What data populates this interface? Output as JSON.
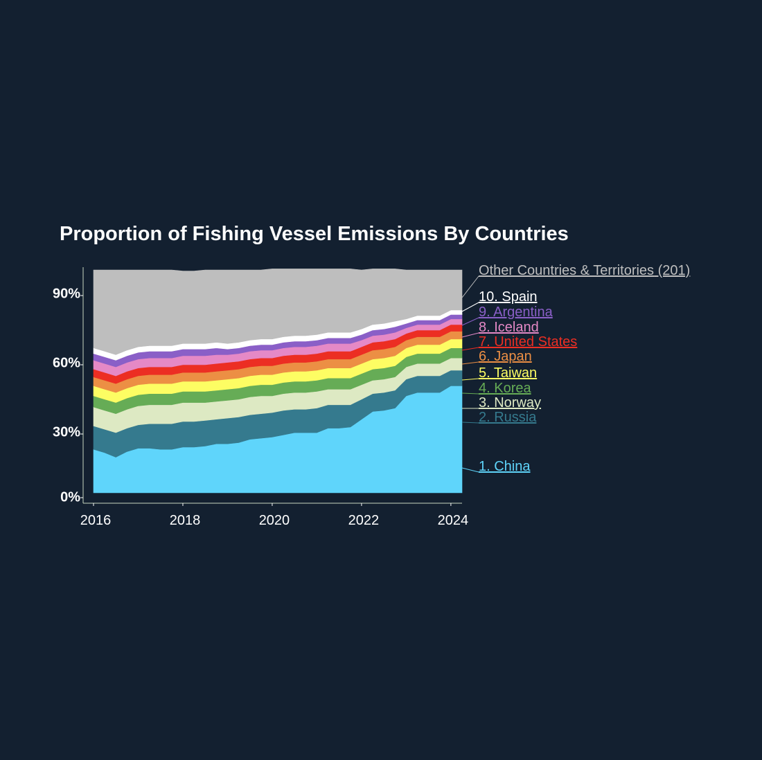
{
  "chart_data": {
    "type": "area",
    "stacked": true,
    "normalized": true,
    "title": "Proportion of Fishing Vessel Emissions By Countries",
    "xlabel": "",
    "ylabel": "",
    "xlim": [
      2016,
      2024.25
    ],
    "ylim": [
      0,
      100
    ],
    "x_ticks": [
      2016,
      2018,
      2020,
      2022,
      2024
    ],
    "x_tick_labels": [
      "2016",
      "2018",
      "2020",
      "2022",
      "2024"
    ],
    "y_ticks": [
      0,
      30,
      60,
      90
    ],
    "y_tick_labels": [
      "0%",
      "30%",
      "60%",
      "90%"
    ],
    "x": [
      2016.0,
      2016.25,
      2016.5,
      2016.75,
      2017.0,
      2017.25,
      2017.5,
      2017.75,
      2018.0,
      2018.25,
      2018.5,
      2018.75,
      2019.0,
      2019.25,
      2019.5,
      2019.75,
      2020.0,
      2020.25,
      2020.5,
      2020.75,
      2021.0,
      2021.25,
      2021.5,
      2021.75,
      2022.0,
      2022.25,
      2022.5,
      2022.75,
      2023.0,
      2023.25,
      2023.5,
      2023.75,
      2024.0,
      2024.25
    ],
    "series": [
      {
        "name": "1. China",
        "color": "#5fd5fb",
        "values": [
          19.5,
          18.0,
          16.0,
          18.5,
          20.0,
          20.0,
          19.5,
          19.5,
          20.5,
          20.5,
          21.0,
          22.0,
          22.0,
          22.5,
          24.0,
          24.5,
          25.0,
          26.0,
          27.0,
          27.0,
          27.0,
          29.0,
          29.0,
          29.5,
          33.0,
          36.5,
          37.0,
          38.0,
          43.5,
          45.0,
          45.0,
          45.0,
          48.0,
          48.0
        ]
      },
      {
        "name": "2. Russia",
        "color": "#357a8e",
        "values": [
          10.5,
          10.5,
          11.0,
          10.5,
          10.5,
          11.0,
          11.5,
          11.5,
          11.5,
          11.5,
          11.5,
          11.0,
          11.5,
          11.5,
          11.0,
          11.0,
          11.0,
          11.0,
          10.5,
          10.5,
          11.0,
          10.5,
          10.5,
          10.0,
          9.0,
          8.0,
          8.0,
          8.0,
          7.5,
          7.5,
          7.5,
          7.5,
          7.0,
          7.0
        ]
      },
      {
        "name": "3. Norway",
        "color": "#dde9c3",
        "values": [
          8.5,
          8.5,
          8.5,
          8.5,
          8.5,
          8.5,
          8.5,
          8.5,
          8.5,
          8.5,
          8.0,
          8.0,
          8.0,
          8.0,
          8.0,
          8.0,
          7.5,
          7.5,
          7.5,
          7.5,
          7.5,
          7.0,
          7.0,
          7.0,
          6.5,
          6.0,
          6.0,
          6.0,
          5.5,
          5.5,
          5.5,
          5.5,
          5.5,
          5.5
        ]
      },
      {
        "name": "4. Korea",
        "color": "#66ac56",
        "values": [
          5.0,
          5.0,
          5.0,
          5.0,
          5.0,
          5.0,
          5.0,
          5.0,
          5.0,
          5.0,
          5.0,
          5.0,
          5.0,
          5.0,
          5.0,
          5.0,
          5.0,
          5.0,
          5.0,
          5.0,
          5.0,
          5.0,
          5.0,
          5.0,
          5.0,
          5.0,
          5.0,
          5.0,
          4.5,
          4.5,
          4.5,
          4.5,
          4.5,
          4.5
        ]
      },
      {
        "name": "5. Taiwan",
        "color": "#fdfd63",
        "values": [
          4.5,
          4.5,
          4.5,
          4.5,
          4.5,
          4.5,
          4.5,
          4.5,
          4.5,
          4.5,
          4.5,
          4.5,
          4.5,
          4.5,
          4.5,
          4.5,
          4.5,
          4.5,
          4.5,
          4.5,
          4.5,
          4.5,
          4.5,
          4.5,
          4.5,
          4.5,
          4.5,
          4.5,
          4.0,
          4.0,
          4.0,
          4.0,
          4.0,
          4.0
        ]
      },
      {
        "name": "6. Japan",
        "color": "#ec8f44",
        "values": [
          4.0,
          4.0,
          4.0,
          4.0,
          4.0,
          4.0,
          4.0,
          4.0,
          4.0,
          4.0,
          4.0,
          4.0,
          4.0,
          4.0,
          4.0,
          4.0,
          4.0,
          4.0,
          4.0,
          4.0,
          4.0,
          4.0,
          4.0,
          4.0,
          4.0,
          4.0,
          4.0,
          4.0,
          3.5,
          3.5,
          3.5,
          3.5,
          3.5,
          3.5
        ]
      },
      {
        "name": "7. United States",
        "color": "#ec2e23",
        "values": [
          3.5,
          3.5,
          3.5,
          3.5,
          3.5,
          3.5,
          3.5,
          3.5,
          3.5,
          3.5,
          3.5,
          3.5,
          3.5,
          3.5,
          3.5,
          3.5,
          3.5,
          3.5,
          3.5,
          3.5,
          3.5,
          3.5,
          3.5,
          3.5,
          3.5,
          3.5,
          3.5,
          3.5,
          3.0,
          3.0,
          3.0,
          3.0,
          3.0,
          3.0
        ]
      },
      {
        "name": "8. Iceland",
        "color": "#e589c6",
        "values": [
          4.0,
          4.0,
          4.0,
          4.0,
          4.0,
          4.0,
          4.0,
          4.0,
          4.0,
          4.0,
          4.0,
          4.0,
          3.5,
          3.5,
          3.5,
          3.5,
          3.5,
          3.5,
          3.5,
          3.5,
          3.5,
          3.5,
          3.5,
          3.5,
          3.0,
          3.0,
          3.0,
          3.0,
          2.5,
          2.5,
          2.5,
          2.5,
          2.5,
          2.5
        ]
      },
      {
        "name": "9. Argentina",
        "color": "#8a5fc7",
        "values": [
          3.0,
          3.0,
          3.0,
          3.0,
          3.0,
          3.0,
          3.0,
          3.0,
          3.0,
          3.0,
          3.0,
          3.0,
          2.5,
          2.5,
          2.5,
          2.5,
          2.5,
          2.5,
          2.5,
          2.5,
          2.5,
          2.5,
          2.5,
          2.5,
          2.5,
          2.5,
          2.5,
          2.5,
          2.0,
          2.0,
          2.0,
          2.0,
          2.0,
          2.0
        ]
      },
      {
        "name": "10. Spain",
        "color": "#ffffff",
        "values": [
          2.5,
          2.5,
          2.5,
          2.5,
          2.5,
          2.5,
          2.5,
          2.5,
          2.5,
          2.5,
          2.5,
          2.5,
          2.5,
          2.5,
          2.5,
          2.5,
          2.5,
          2.5,
          2.5,
          2.5,
          2.5,
          2.5,
          2.5,
          2.5,
          2.5,
          2.5,
          2.5,
          2.5,
          2.0,
          2.0,
          2.0,
          2.0,
          2.0,
          2.0
        ]
      },
      {
        "name": "Other Countries & Territories",
        "count_label": "(201)",
        "color": "#bebebe",
        "values": [
          35.0,
          36.5,
          38.0,
          36.0,
          34.5,
          34.0,
          34.0,
          34.0,
          32.5,
          32.5,
          33.0,
          32.5,
          33.0,
          32.5,
          31.5,
          31.0,
          31.5,
          30.5,
          30.0,
          30.0,
          29.5,
          28.5,
          28.5,
          28.5,
          26.5,
          25.0,
          24.5,
          23.5,
          22.0,
          20.5,
          20.5,
          20.5,
          18.0,
          18.0
        ]
      }
    ]
  }
}
